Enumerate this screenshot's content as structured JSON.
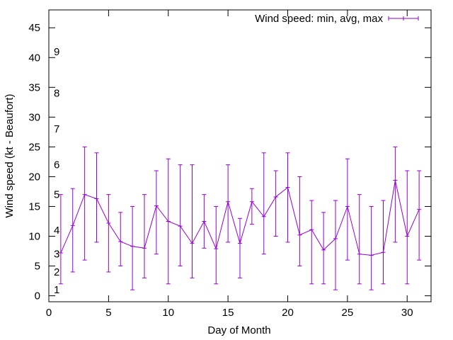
{
  "chart_data": {
    "type": "line",
    "title": "",
    "xlabel": "Day of Month",
    "ylabel": "Wind speed (kt - Beaufort)",
    "xlim": [
      0,
      32
    ],
    "ylim": [
      -1,
      48
    ],
    "xticks": [
      0,
      5,
      10,
      15,
      20,
      25,
      30
    ],
    "yticks": [
      0,
      5,
      10,
      15,
      20,
      25,
      30,
      35,
      40,
      45
    ],
    "grid": false,
    "legend": "top-right",
    "series_color": "#9400d3",
    "beaufort_labels": [
      {
        "label": "1",
        "y": 1
      },
      {
        "label": "2",
        "y": 4
      },
      {
        "label": "3",
        "y": 7
      },
      {
        "label": "4",
        "y": 11
      },
      {
        "label": "5",
        "y": 17
      },
      {
        "label": "6",
        "y": 22
      },
      {
        "label": "7",
        "y": 28
      },
      {
        "label": "8",
        "y": 34
      },
      {
        "label": "9",
        "y": 41
      }
    ],
    "series": [
      {
        "name": "Wind speed: min, avg, max",
        "x": [
          1,
          2,
          3,
          4,
          5,
          6,
          7,
          8,
          9,
          10,
          11,
          12,
          13,
          14,
          15,
          16,
          17,
          18,
          19,
          20,
          21,
          22,
          23,
          24,
          25,
          26,
          27,
          28,
          29,
          30,
          31
        ],
        "avg": [
          7.2,
          11.8,
          17.0,
          16.3,
          12.2,
          9.1,
          8.3,
          8.0,
          15.1,
          12.5,
          11.7,
          8.8,
          12.5,
          7.9,
          15.8,
          8.8,
          15.8,
          13.3,
          16.6,
          18.2,
          10.2,
          11.1,
          7.7,
          9.6,
          15.0,
          7.0,
          6.8,
          7.3,
          19.4,
          10.0,
          14.5
        ],
        "min": [
          2,
          4,
          6,
          9,
          4,
          5,
          1,
          3,
          7,
          2,
          5,
          3,
          8,
          2,
          9,
          3,
          12,
          7,
          10,
          9,
          5,
          2,
          2,
          1,
          6,
          2,
          1,
          2,
          9,
          2,
          6
        ],
        "max": [
          17,
          18,
          25,
          24,
          17,
          14,
          15,
          17,
          21,
          23,
          22,
          22,
          17,
          15,
          22,
          13,
          18,
          24,
          21,
          24,
          20,
          16,
          14,
          16,
          23,
          17,
          15,
          16,
          25,
          21,
          21
        ]
      }
    ]
  }
}
